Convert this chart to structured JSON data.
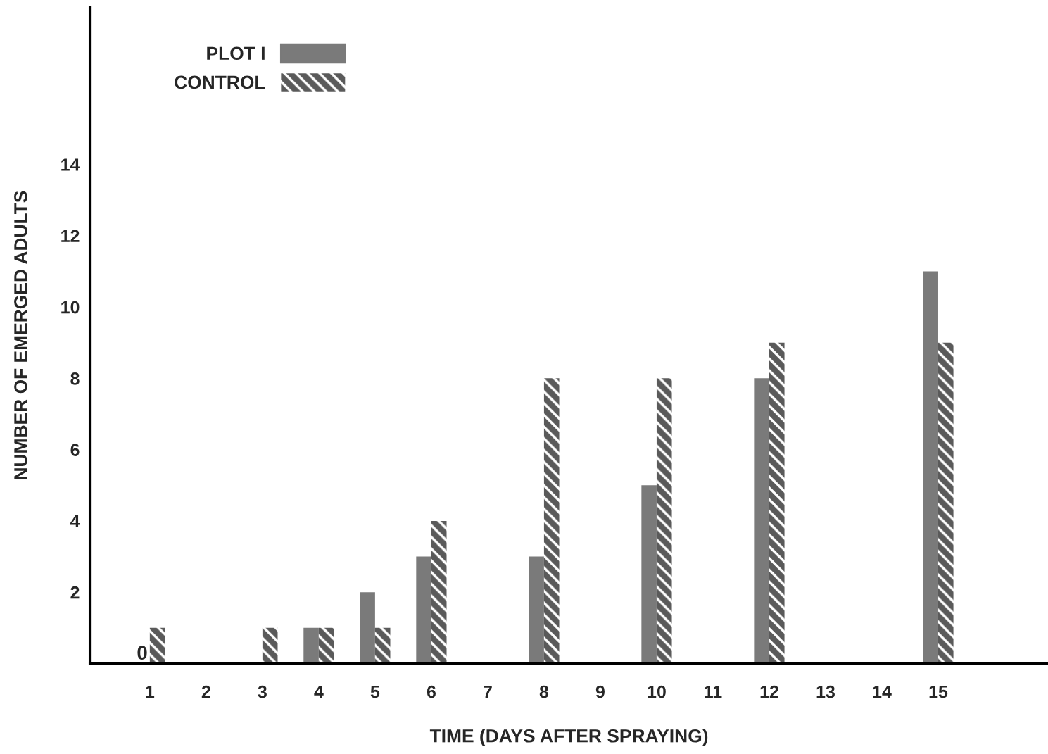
{
  "chart_data": {
    "type": "bar",
    "xlabel": "TIME (DAYS AFTER SPRAYING)",
    "ylabel": "NUMBER OF EMERGED ADULTS",
    "categories": [
      "1",
      "2",
      "3",
      "4",
      "5",
      "6",
      "7",
      "8",
      "9",
      "10",
      "11",
      "12",
      "13",
      "14",
      "15",
      null
    ],
    "series": [
      {
        "name": "PLOT I",
        "color": "#7a7a7a",
        "values": [
          0,
          null,
          null,
          1,
          2,
          3,
          null,
          3,
          null,
          5,
          null,
          8,
          null,
          null,
          11,
          null
        ],
        "value_labels": [
          "0",
          null,
          null,
          null,
          null,
          null,
          null,
          null,
          null,
          null,
          null,
          null,
          null,
          null,
          null,
          null
        ]
      },
      {
        "name": "CONTROL",
        "color": "#5a5a5a",
        "values": [
          1,
          null,
          1,
          1,
          1,
          4,
          null,
          8,
          null,
          8,
          null,
          9,
          null,
          null,
          9,
          null
        ]
      }
    ],
    "ylim": [
      0,
      18.4
    ],
    "yticks": [
      2,
      4,
      6,
      8,
      10,
      12,
      14
    ],
    "legend": "top left",
    "grid": false
  }
}
